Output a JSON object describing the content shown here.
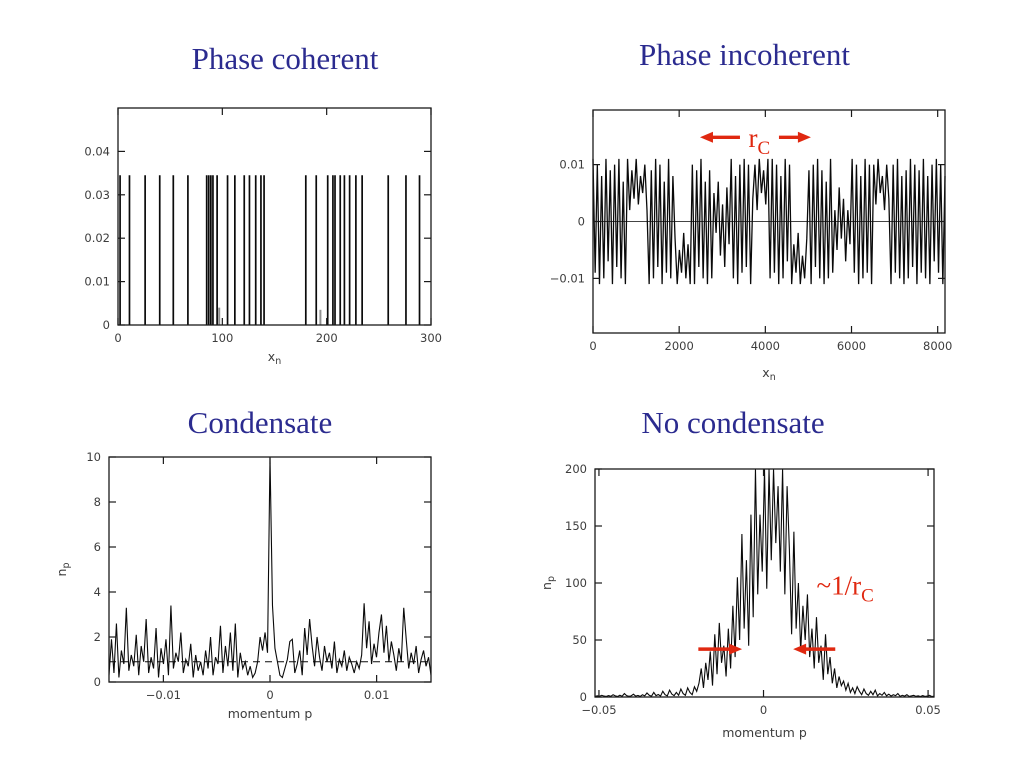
{
  "page": {
    "background": "#ffffff"
  },
  "colors": {
    "title": "#2b2b8f",
    "annotation_red": "#e02810",
    "plot_line": "#0a0a0a",
    "tick_text": "#3d3d3d"
  },
  "chart_data": [
    {
      "id": "phase-coherent",
      "title": "Phase coherent",
      "type": "stem",
      "xlim": [
        0,
        300
      ],
      "ylim": [
        0,
        0.05
      ],
      "xticks": {
        "values": [
          0,
          100,
          200,
          300
        ],
        "labels": [
          "0",
          "100",
          "200",
          "300"
        ]
      },
      "yticks": {
        "values": [
          0,
          0.01,
          0.02,
          0.03,
          0.04
        ],
        "labels": [
          "0",
          "0.01",
          "0.02",
          "0.03",
          "0.04"
        ]
      },
      "xlabel": {
        "main": "x",
        "sub": "n"
      },
      "ylabel": null,
      "stem_height": 0.0345,
      "stems_x": [
        2,
        11,
        26,
        40,
        53,
        67,
        85,
        87,
        89,
        91,
        95,
        105,
        112,
        121,
        126,
        132,
        137,
        140,
        180,
        190,
        201,
        206,
        208,
        213,
        217,
        222,
        228,
        234,
        259,
        276,
        289
      ],
      "short_stems": [
        [
          97,
          0.004
        ],
        [
          194,
          0.0035
        ]
      ],
      "grid": false,
      "legend": null
    },
    {
      "id": "phase-incoherent",
      "title": "Phase incoherent",
      "type": "line",
      "xlim": [
        0,
        8170
      ],
      "ylim": [
        -0.0196,
        0.0196
      ],
      "xticks": {
        "values": [
          0,
          2000,
          4000,
          6000,
          8000
        ],
        "labels": [
          "0",
          "2000",
          "4000",
          "6000",
          "8000"
        ]
      },
      "yticks": {
        "values": [
          -0.01,
          0,
          0.01
        ],
        "labels": [
          "−0.01",
          "0",
          "0.01"
        ]
      },
      "xlabel": {
        "main": "x",
        "sub": "n"
      },
      "ylabel": null,
      "zero_line": 0,
      "x0": 0,
      "x1": 8170,
      "y_scale": 0.001,
      "y": [
        11,
        -9,
        10,
        -11,
        8,
        -10,
        11,
        -7,
        9,
        -11,
        10,
        -8,
        11,
        -10,
        7,
        -11,
        11,
        2,
        9,
        4,
        11,
        3,
        8,
        5,
        10,
        2,
        -11,
        9,
        -10,
        11,
        -8,
        10,
        -11,
        7,
        -9,
        11,
        -10,
        8,
        -3,
        -11,
        -5,
        -9,
        -2,
        -10,
        -4,
        -11,
        10,
        -11,
        9,
        -8,
        11,
        -10,
        7,
        -11,
        9,
        -10,
        5,
        -2,
        7,
        -6,
        3,
        -8,
        6,
        -4,
        11,
        -10,
        8,
        -11,
        10,
        -9,
        11,
        -8,
        10,
        -11,
        4,
        10,
        2,
        11,
        5,
        9,
        3,
        11,
        -10,
        11,
        -9,
        10,
        -11,
        8,
        -10,
        11,
        -7,
        10,
        -11,
        -4,
        -9,
        -2,
        -11,
        -6,
        -10,
        -3,
        9,
        -11,
        10,
        -8,
        11,
        -10,
        9,
        -11,
        7,
        -10,
        11,
        -9,
        2,
        -5,
        6,
        -3,
        4,
        -7,
        2,
        -4,
        11,
        -9,
        10,
        -11,
        8,
        -10,
        11,
        -9,
        10,
        -11,
        10,
        3,
        11,
        5,
        8,
        2,
        10,
        4,
        -11,
        10,
        -9,
        11,
        -10,
        8,
        -11,
        9,
        -10,
        11,
        -8,
        10,
        -11,
        9,
        -9,
        11,
        -10,
        8,
        -11,
        10,
        -7,
        11,
        -9,
        10,
        -11,
        8
      ],
      "annotations": [
        {
          "type": "arrow",
          "from": [
            3411,
            0.0148
          ],
          "to": [
            2483,
            0.0148
          ]
        },
        {
          "type": "text",
          "x": 3860,
          "y": 0.0131,
          "main": "r",
          "sub": "C",
          "anchor": "middle"
        },
        {
          "type": "arrow",
          "from": [
            4316,
            0.0148
          ],
          "to": [
            5058,
            0.0148
          ]
        }
      ],
      "grid": false,
      "legend": null
    },
    {
      "id": "condensate",
      "title": "Condensate",
      "type": "line",
      "xlim": [
        -0.0151,
        0.0151
      ],
      "ylim": [
        0,
        10
      ],
      "xticks": {
        "values": [
          -0.01,
          0,
          0.01
        ],
        "labels": [
          "−0.01",
          "0",
          "0.01"
        ]
      },
      "yticks": {
        "values": [
          0,
          2,
          4,
          6,
          8,
          10
        ],
        "labels": [
          "0",
          "2",
          "4",
          "6",
          "8",
          "10"
        ]
      },
      "xlabel": {
        "main": "momentum p",
        "sub": ""
      },
      "ylabel": {
        "main": "n",
        "sub": "p"
      },
      "dashed_line": 0.9,
      "x0": -0.0151,
      "x1": 0.0151,
      "y_scale": 0.1,
      "y": [
        3,
        19,
        4,
        26,
        2,
        14,
        8,
        33,
        5,
        12,
        7,
        21,
        3,
        16,
        9,
        28,
        4,
        11,
        6,
        24,
        2,
        15,
        8,
        19,
        3,
        34,
        6,
        13,
        9,
        22,
        4,
        10,
        7,
        17,
        2,
        12,
        5,
        9,
        3,
        14,
        6,
        20,
        3,
        11,
        8,
        25,
        4,
        16,
        7,
        22,
        5,
        26,
        2,
        13,
        6,
        9,
        3,
        7,
        2,
        4,
        9,
        20,
        14,
        22,
        13,
        100,
        34,
        15,
        9,
        3,
        2,
        6,
        10,
        18,
        19,
        4,
        8,
        14,
        3,
        24,
        12,
        28,
        16,
        7,
        20,
        11,
        5,
        16,
        9,
        13,
        6,
        18,
        4,
        10,
        7,
        14,
        5,
        11,
        8,
        4,
        9,
        6,
        12,
        35,
        15,
        27,
        8,
        17,
        11,
        22,
        30,
        13,
        25,
        9,
        18,
        12,
        5,
        15,
        9,
        33,
        19,
        6,
        13,
        8,
        16,
        4,
        10,
        14,
        7,
        11,
        3
      ],
      "grid": false,
      "legend": null
    },
    {
      "id": "no-condensate",
      "title": "No condensate",
      "type": "line",
      "xlim": [
        -0.0512,
        0.0518
      ],
      "ylim": [
        0,
        200
      ],
      "xticks": {
        "values": [
          -0.05,
          0,
          0.05
        ],
        "labels": [
          "−0.05",
          "0",
          "0.05"
        ]
      },
      "yticks": {
        "values": [
          0,
          50,
          100,
          150,
          200
        ],
        "labels": [
          "0",
          "50",
          "100",
          "150",
          "200"
        ]
      },
      "xlabel": {
        "main": "momentum p",
        "sub": ""
      },
      "ylabel": {
        "main": "n",
        "sub": "p"
      },
      "x0": -0.0512,
      "x1": 0.0518,
      "y_scale": 1,
      "y": [
        0.5,
        1,
        0.7,
        1.5,
        0.8,
        0.5,
        1.2,
        0.6,
        2,
        1,
        0.5,
        1.5,
        0.7,
        3,
        1.2,
        0.6,
        1,
        2.5,
        0.8,
        1.4,
        0.5,
        2,
        1,
        3.5,
        1.5,
        0.7,
        4,
        1.2,
        2.2,
        0.8,
        5,
        2,
        1,
        6,
        2.5,
        1.2,
        4,
        1.5,
        7,
        3,
        1.5,
        8,
        4,
        2,
        9,
        5,
        12,
        25,
        8,
        30,
        15,
        40,
        10,
        55,
        20,
        65,
        30,
        45,
        18,
        60,
        25,
        80,
        35,
        105,
        50,
        143,
        60,
        120,
        45,
        160,
        70,
        200,
        90,
        160,
        110,
        200,
        95,
        200,
        120,
        200,
        135,
        185,
        110,
        200,
        90,
        185,
        130,
        55,
        145,
        60,
        100,
        40,
        80,
        50,
        90,
        35,
        60,
        25,
        70,
        30,
        45,
        15,
        55,
        20,
        35,
        12,
        25,
        8,
        18,
        10,
        14,
        6,
        12,
        4,
        8,
        3,
        9,
        5,
        2,
        7,
        3,
        1.5,
        5,
        2,
        6,
        1,
        3,
        1.5,
        4,
        1,
        2.5,
        0.8,
        2,
        1.2,
        3,
        0.6,
        1.5,
        0.8,
        2,
        0.5,
        1,
        1.5,
        0.6,
        1,
        0.4,
        1.2,
        0.5,
        0.8,
        1.5,
        0.4,
        0.7
      ],
      "annotations": [
        {
          "type": "arrow",
          "from": [
            -0.0198,
            42
          ],
          "to": [
            -0.0065,
            42
          ]
        },
        {
          "type": "arrow",
          "from": [
            0.0218,
            42
          ],
          "to": [
            0.009,
            42
          ]
        },
        {
          "type": "text",
          "x": 0.0248,
          "y": 90,
          "main": "~1/r",
          "sub": "C",
          "anchor": "middle"
        }
      ],
      "grid": false,
      "legend": null
    }
  ]
}
